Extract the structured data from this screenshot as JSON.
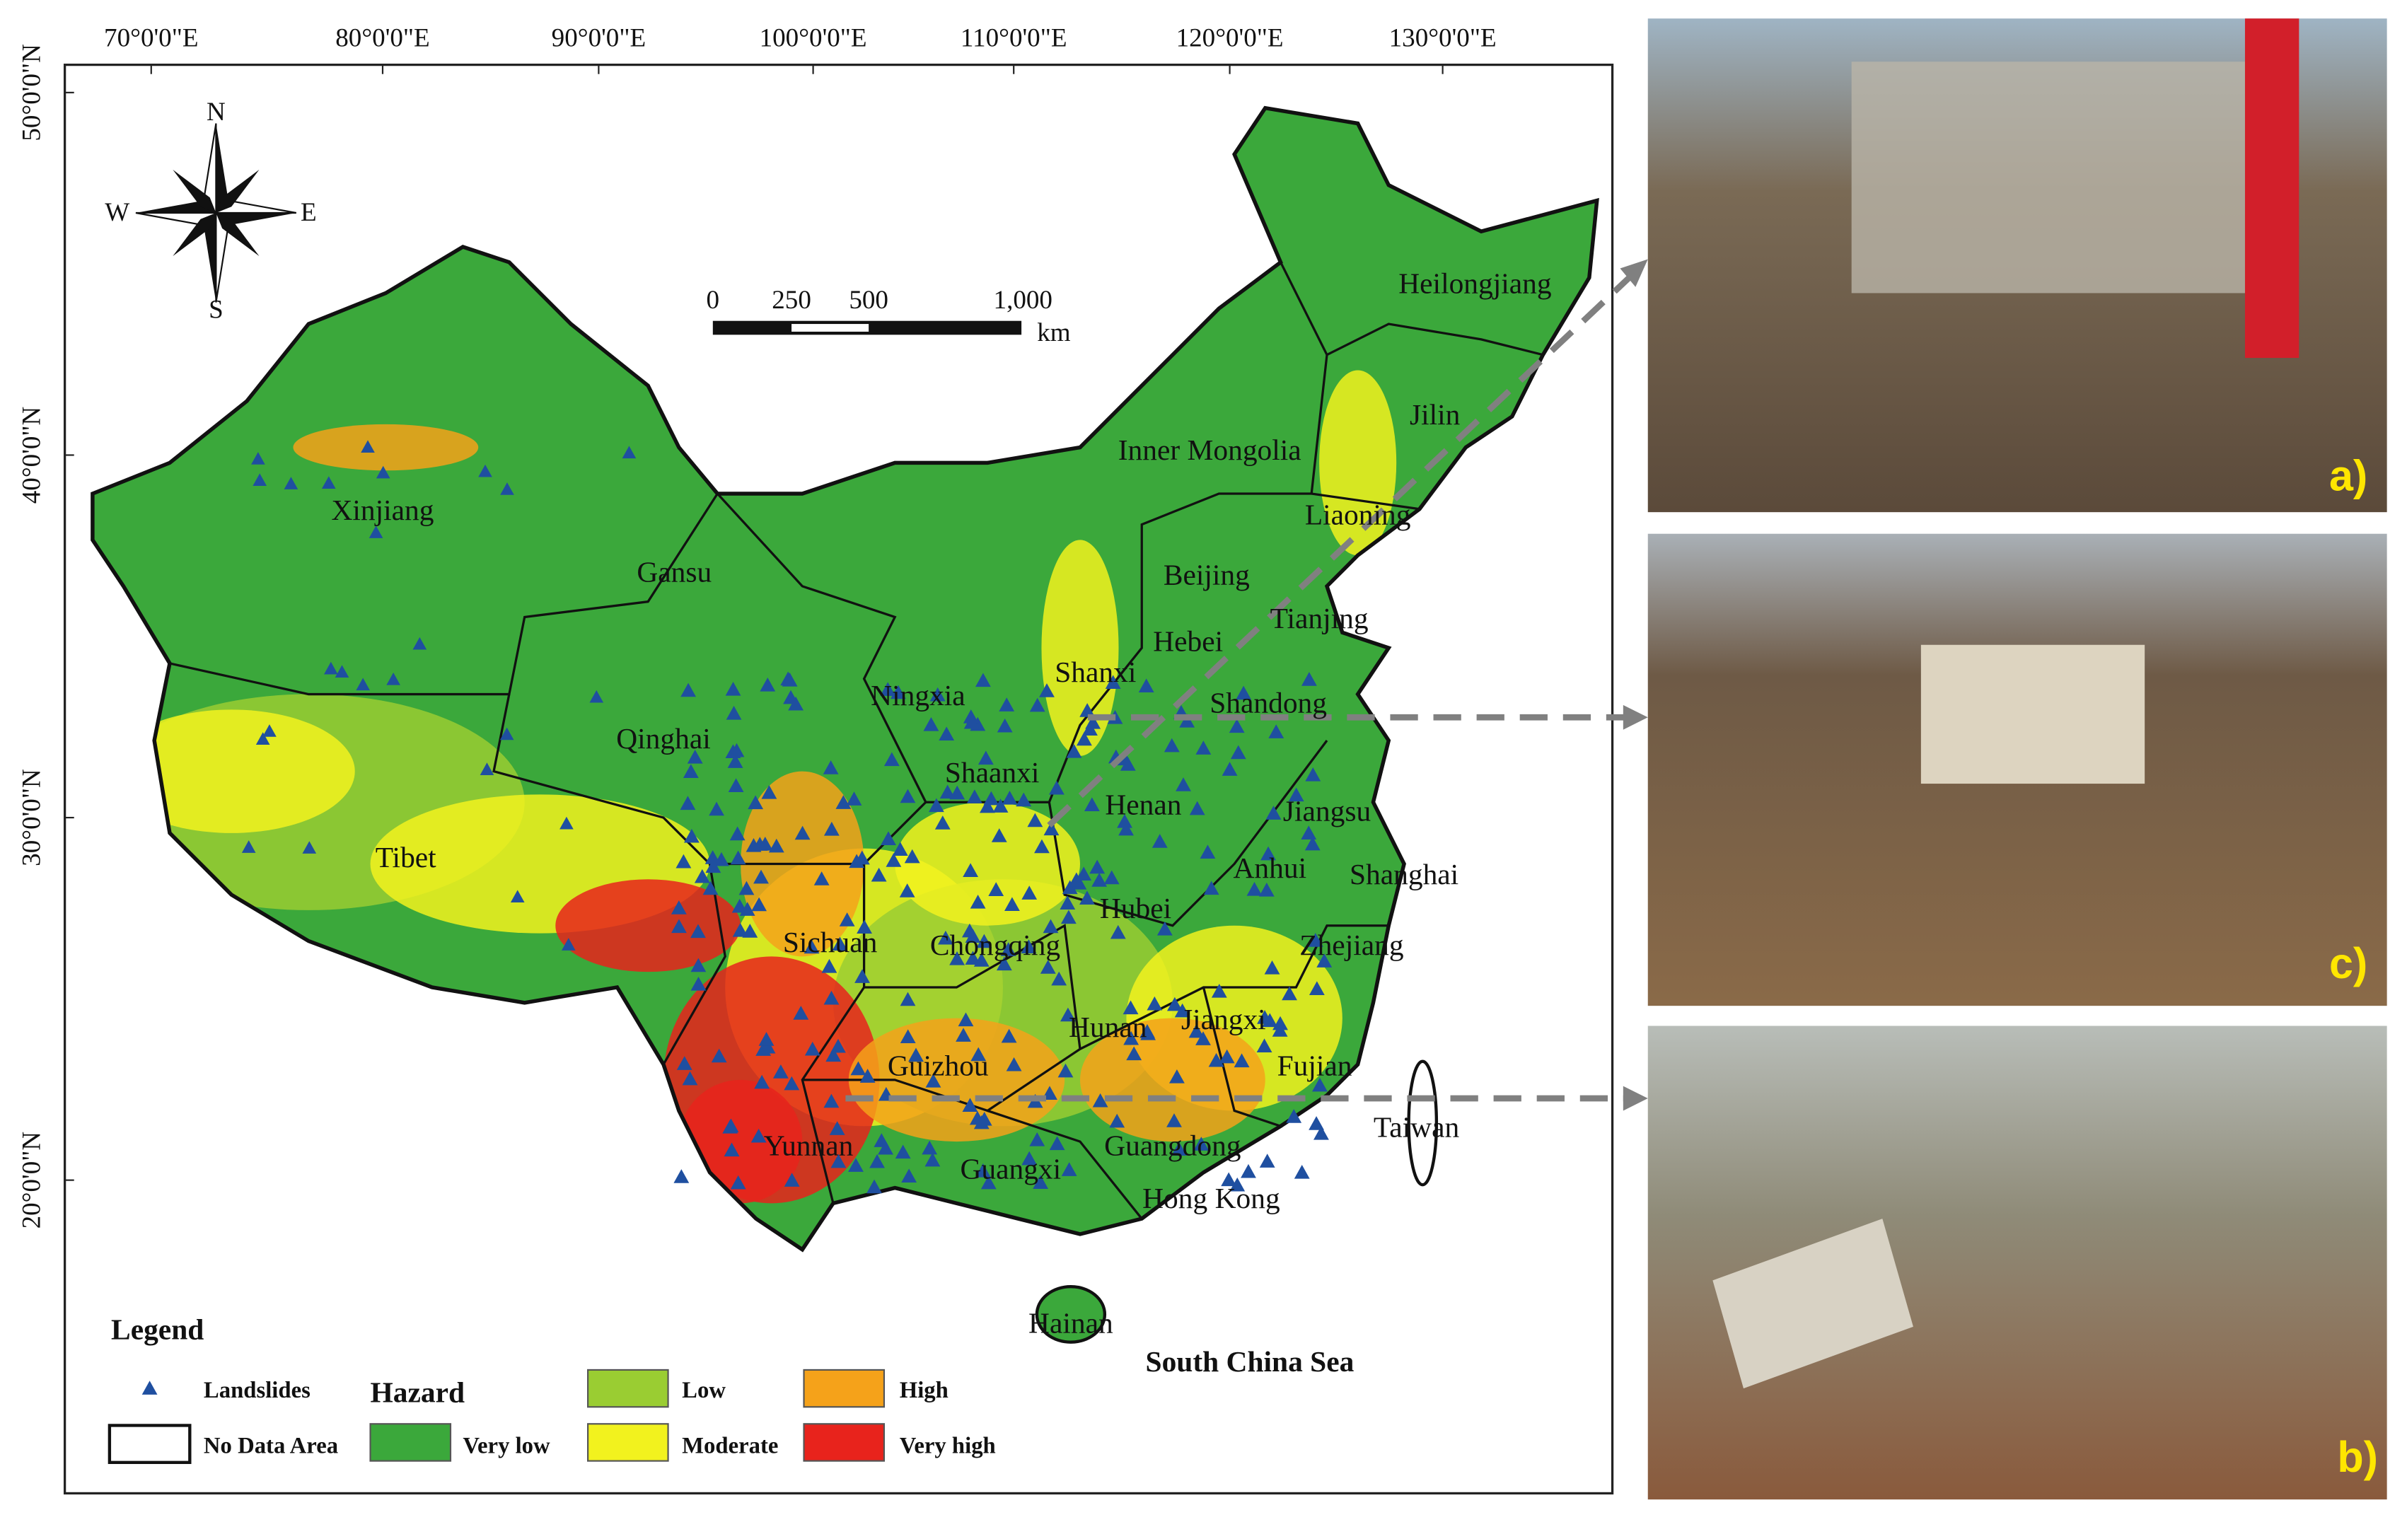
{
  "map": {
    "longitude_labels": [
      "70°0'0\"E",
      "80°0'0\"E",
      "90°0'0\"E",
      "100°0'0\"E",
      "110°0'0\"E",
      "120°0'0\"E",
      "130°0'0\"E"
    ],
    "latitude_labels": [
      "50°0'0\"N",
      "40°0'0\"N",
      "30°0'0\"N",
      "20°0'0\"N"
    ],
    "regions": [
      "Xinjiang",
      "Gansu",
      "Qinghai",
      "Tibet",
      "Inner Mongolia",
      "Heilongjiang",
      "Jilin",
      "Liaoning",
      "Beijing",
      "Tianjing",
      "Hebei",
      "Shanxi",
      "Shandong",
      "Ningxia",
      "Shaanxi",
      "Henan",
      "Jiangsu",
      "Anhui",
      "Shanghai",
      "Hubei",
      "Sichuan",
      "Chongqing",
      "Zhejiang",
      "Hunan",
      "Jiangxi",
      "Fujian",
      "Guizhou",
      "Yunnan",
      "Guangxi",
      "Guangdong",
      "Hong Kong",
      "Taiwan",
      "Hainan"
    ],
    "sea_label": "South China Sea",
    "scale_bar": {
      "labels": [
        "0",
        "250",
        "500",
        "1,000"
      ],
      "unit": "km"
    },
    "compass": {
      "north": "N",
      "south": "S",
      "east": "E",
      "west": "W"
    }
  },
  "legend": {
    "title": "Legend",
    "landslides": "Landslides",
    "hazard": "Hazard",
    "no_data": "No Data Area",
    "classes": [
      {
        "label": "Very low",
        "color": "#3ba83b"
      },
      {
        "label": "Low",
        "color": "#9acd32"
      },
      {
        "label": "Moderate",
        "color": "#f2f21e"
      },
      {
        "label": "High",
        "color": "#f5a21a"
      },
      {
        "label": "Very high",
        "color": "#e8231c"
      }
    ]
  },
  "photos": [
    {
      "label": "a)"
    },
    {
      "label": "c)"
    },
    {
      "label": "b)"
    }
  ]
}
